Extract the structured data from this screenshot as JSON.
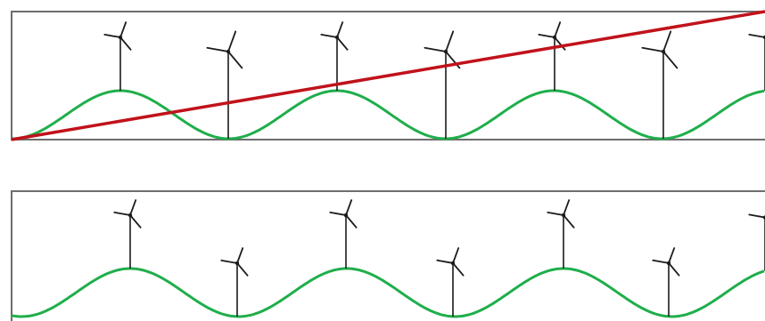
{
  "figure": {
    "panels": [
      {
        "id": "top",
        "has_diagonal_line": true,
        "turbines": [
          {
            "on_hill": "crest",
            "size": "small"
          },
          {
            "on_hill": "valley",
            "size": "large"
          },
          {
            "on_hill": "crest",
            "size": "small"
          },
          {
            "on_hill": "valley",
            "size": "large"
          },
          {
            "on_hill": "crest",
            "size": "small"
          },
          {
            "on_hill": "valley",
            "size": "large"
          },
          {
            "on_hill": "crest",
            "size": "small"
          }
        ]
      },
      {
        "id": "bottom",
        "has_diagonal_line": false,
        "turbines": [
          {
            "on_hill": "crest",
            "size": "small"
          },
          {
            "on_hill": "valley",
            "size": "small"
          },
          {
            "on_hill": "crest",
            "size": "small"
          },
          {
            "on_hill": "valley",
            "size": "small"
          },
          {
            "on_hill": "crest",
            "size": "small"
          },
          {
            "on_hill": "valley",
            "size": "small"
          },
          {
            "on_hill": "crest",
            "size": "small"
          }
        ]
      }
    ],
    "colors": {
      "frame": "#6d6d6d",
      "terrain": "#1fae4b",
      "diagonal": "#c1121b",
      "turbine": "#1b1b1b",
      "background": "#ffffff"
    }
  }
}
